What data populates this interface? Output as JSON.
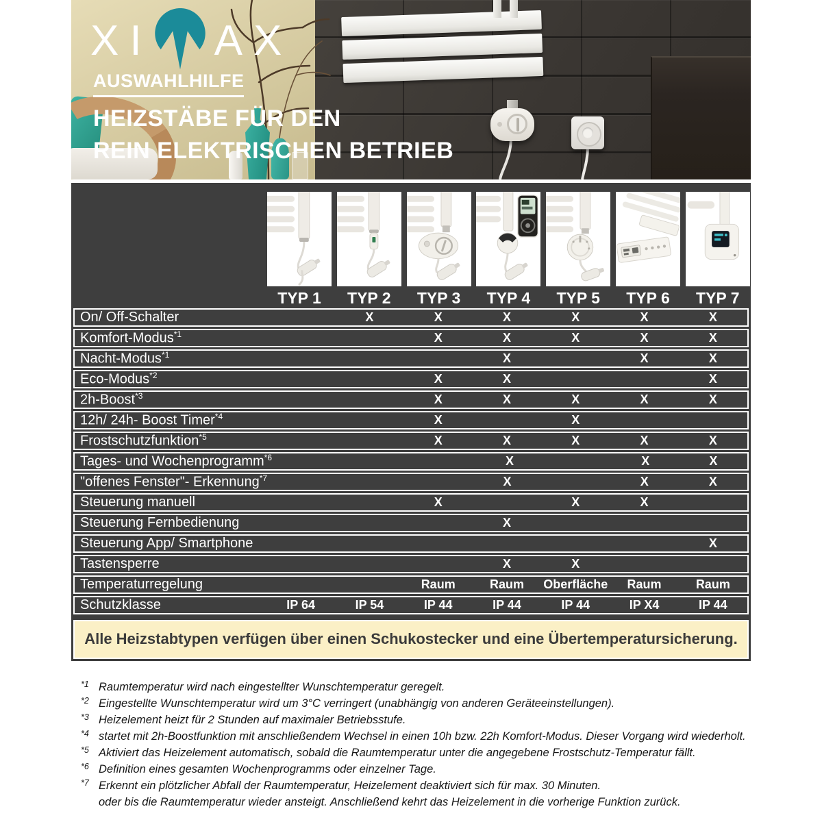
{
  "brand": {
    "logo_left": "XI",
    "logo_right": "AX",
    "name": "XIMAX"
  },
  "hero": {
    "kicker": "AUSWAHLHILFE",
    "title_line1": "HEIZSTÄBE FÜR DEN",
    "title_line2": "REIN ELEKTRISCHEN BETRIEB"
  },
  "table": {
    "columns": [
      "TYP 1",
      "TYP 2",
      "TYP 3",
      "TYP 4",
      "TYP 5",
      "TYP 6",
      "TYP 7"
    ],
    "rows": [
      {
        "label": "On/ Off-Schalter",
        "sup": "",
        "values": [
          "",
          "X",
          "X",
          "X",
          "X",
          "X",
          "X"
        ]
      },
      {
        "label": "Komfort-Modus",
        "sup": "*1",
        "values": [
          "",
          "",
          "X",
          "X",
          "X",
          "X",
          "X"
        ]
      },
      {
        "label": "Nacht-Modus",
        "sup": "*1",
        "values": [
          "",
          "",
          "",
          "X",
          "",
          "X",
          "X"
        ]
      },
      {
        "label": "Eco-Modus",
        "sup": "*2",
        "values": [
          "",
          "",
          "X",
          "X",
          "",
          "",
          "X"
        ]
      },
      {
        "label": "2h-Boost",
        "sup": "*3",
        "values": [
          "",
          "",
          "X",
          "X",
          "X",
          "X",
          "X"
        ]
      },
      {
        "label": "12h/ 24h- Boost Timer",
        "sup": "*4",
        "values": [
          "",
          "",
          "X",
          "",
          "X",
          "",
          ""
        ]
      },
      {
        "label": "Frostschutzfunktion",
        "sup": "*5",
        "values": [
          "",
          "",
          "X",
          "X",
          "X",
          "X",
          "X"
        ]
      },
      {
        "label": "Tages- und Wochenprogramm",
        "sup": "*6",
        "values": [
          "",
          "",
          "",
          "X",
          "",
          "X",
          "X"
        ]
      },
      {
        "label": "\"offenes Fenster\"- Erkennung",
        "sup": "*7",
        "values": [
          "",
          "",
          "",
          "X",
          "",
          "X",
          "X"
        ]
      },
      {
        "label": "Steuerung manuell",
        "sup": "",
        "values": [
          "",
          "",
          "X",
          "",
          "X",
          "X",
          ""
        ]
      },
      {
        "label": "Steuerung Fernbedienung",
        "sup": "",
        "values": [
          "",
          "",
          "",
          "X",
          "",
          "",
          ""
        ]
      },
      {
        "label": "Steuerung App/ Smartphone",
        "sup": "",
        "values": [
          "",
          "",
          "",
          "",
          "",
          "",
          "X"
        ]
      },
      {
        "label": "Tastensperre",
        "sup": "",
        "values": [
          "",
          "",
          "",
          "X",
          "X",
          "",
          ""
        ]
      },
      {
        "label": "Temperaturregelung",
        "sup": "",
        "values": [
          "",
          "",
          "Raum",
          "Raum",
          "Oberfläche",
          "Raum",
          "Raum"
        ]
      },
      {
        "label": "Schutzklasse",
        "sup": "",
        "values": [
          "IP 64",
          "IP 54",
          "IP 44",
          "IP 44",
          "IP 44",
          "IP X4",
          "IP 44"
        ]
      }
    ],
    "note": "Alle Heizstabtypen verfügen über einen Schukostecker und eine Übertemperatursicherung."
  },
  "footnotes": [
    {
      "sup": "*1",
      "text": "Raumtemperatur wird nach eingestellter Wunschtemperatur geregelt."
    },
    {
      "sup": "*2",
      "text": "Eingestellte Wunschtemperatur wird um 3°C verringert (unabhängig von anderen Geräteeinstellungen)."
    },
    {
      "sup": "*3",
      "text": "Heizelement heizt für 2 Stunden auf maximaler Betriebsstufe."
    },
    {
      "sup": "*4",
      "text": "startet mit 2h-Boostfunktion mit anschließendem Wechsel in einen 10h bzw. 22h Komfort-Modus. Dieser Vorgang wird wiederholt."
    },
    {
      "sup": "*5",
      "text": "Aktiviert das Heizelement automatisch, sobald die Raumtemperatur unter die angegebene Frostschutz-Temperatur fällt."
    },
    {
      "sup": "*6",
      "text": "Definition eines gesamten Wochenprogramms oder einzelner Tage."
    },
    {
      "sup": "*7",
      "text": "Erkennt ein plötzlicher Abfall der Raumtemperatur, Heizelement deaktiviert sich für max. 30 Minuten."
    },
    {
      "sup": "",
      "text": "oder bis die Raumtemperatur wieder ansteigt. Anschließend kehrt das Heizelement in die vorherige Funktion zurück."
    }
  ],
  "colors": {
    "brand_teal": "#1b8b99",
    "panel_bg": "#3e3e3e",
    "note_bg": "#fbf0c6",
    "note_text": "#3b3b3b",
    "beige_wall": "#d5caa0",
    "tile_wall": "#3a3733"
  }
}
